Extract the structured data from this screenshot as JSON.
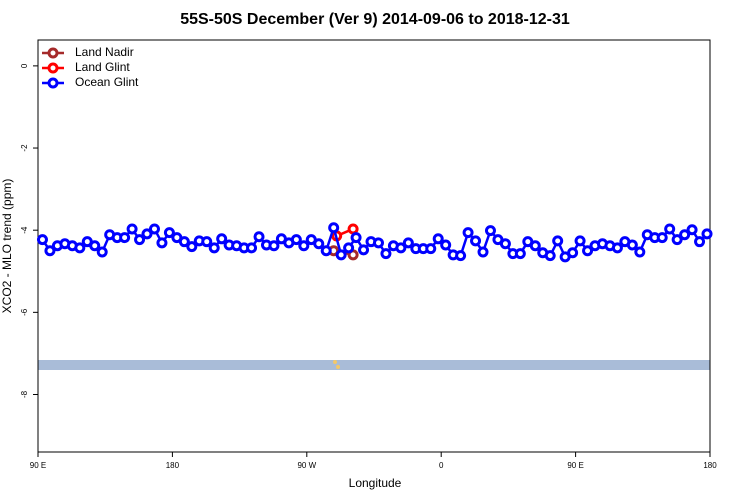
{
  "chart_data": {
    "type": "line",
    "title": "55S-50S December (Ver 9)   2014-09-06 to 2018-12-31",
    "x_label": "Longitude",
    "y_label": "XCO2 - MLO trend (ppm)",
    "xlim": [
      90,
      540
    ],
    "ylim": [
      -9.4,
      0.63
    ],
    "xticks": [
      {
        "value": 90,
        "label": "90 E"
      },
      180,
      {
        "value": 270,
        "label": "90 W"
      },
      {
        "value": 360,
        "label": "0"
      },
      {
        "value": 450,
        "label": "90 E"
      },
      {
        "value": 540,
        "label": "180"
      }
    ],
    "yticks": [
      0,
      -2,
      -4,
      -6,
      -8
    ],
    "legend": "upper left",
    "series": [
      {
        "name": "Land Nadir",
        "color": "#a52a2a",
        "x": [
          288,
          301
        ],
        "values": [
          -4.5,
          -4.6
        ]
      },
      {
        "name": "Land Glint",
        "color": "#ff0000",
        "x": [
          290,
          301
        ],
        "values": [
          -4.14,
          -3.97
        ]
      },
      {
        "name": "Ocean Glint",
        "color": "#0000ff",
        "x": [
          93,
          98,
          103,
          108,
          113,
          118,
          123,
          128,
          133,
          138,
          143,
          148,
          153,
          158,
          163,
          168,
          173,
          178,
          183,
          188,
          193,
          198,
          203,
          208,
          213,
          218,
          223,
          228,
          233,
          238,
          243,
          248,
          253,
          258,
          263,
          268,
          273,
          278,
          283,
          288,
          293,
          298,
          303,
          308,
          313,
          318,
          323,
          328,
          333,
          338,
          343,
          348,
          353,
          358,
          363,
          368,
          373,
          378,
          383,
          388,
          393,
          398,
          403,
          408,
          413,
          418,
          423,
          428,
          433,
          438,
          443,
          448,
          453,
          458,
          463,
          468,
          473,
          478,
          483,
          488,
          493,
          498,
          503,
          508,
          513,
          518,
          523,
          528,
          533,
          538
        ],
        "values": [
          -4.23,
          -4.5,
          -4.38,
          -4.33,
          -4.38,
          -4.43,
          -4.28,
          -4.38,
          -4.53,
          -4.11,
          -4.18,
          -4.18,
          -3.97,
          -4.23,
          -4.09,
          -3.97,
          -4.31,
          -4.06,
          -4.18,
          -4.28,
          -4.4,
          -4.26,
          -4.28,
          -4.43,
          -4.21,
          -4.36,
          -4.38,
          -4.43,
          -4.43,
          -4.16,
          -4.36,
          -4.38,
          -4.21,
          -4.31,
          -4.23,
          -4.38,
          -4.23,
          -4.33,
          -4.5,
          -3.94,
          -4.6,
          -4.43,
          -4.18,
          -4.48,
          -4.28,
          -4.31,
          -4.57,
          -4.38,
          -4.43,
          -4.31,
          -4.45,
          -4.45,
          -4.45,
          -4.21,
          -4.36,
          -4.6,
          -4.62,
          -4.06,
          -4.26,
          -4.53,
          -4.01,
          -4.23,
          -4.33,
          -4.57,
          -4.57,
          -4.28,
          -4.38,
          -4.55,
          -4.62,
          -4.26,
          -4.65,
          -4.55,
          -4.26,
          -4.5,
          -4.38,
          -4.33,
          -4.38,
          -4.43,
          -4.28,
          -4.36,
          -4.53,
          -4.11,
          -4.18,
          -4.18,
          -3.97,
          -4.23,
          -4.11,
          -3.99,
          -4.28,
          -4.09
        ]
      }
    ]
  }
}
